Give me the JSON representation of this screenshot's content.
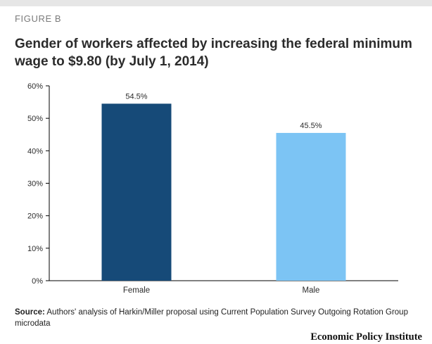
{
  "figure_label": "FIGURE B",
  "title": "Gender of workers affected by increasing the federal minimum wage to $9.80 (by July 1, 2014)",
  "source_label": "Source:",
  "source_text": "Authors' analysis of Harkin/Miller proposal using Current Population Survey Outgoing Rotation Group microdata",
  "logo_text": "Economic Policy Institute",
  "colors": {
    "female": "#164a78",
    "male": "#7cc4f4",
    "axis": "#000000",
    "text": "#2b2b2b"
  },
  "chart_data": {
    "type": "bar",
    "categories": [
      "Female",
      "Male"
    ],
    "values": [
      54.5,
      45.5
    ],
    "data_labels": [
      "54.5%",
      "45.5%"
    ],
    "yticks": [
      "0%",
      "10%",
      "20%",
      "30%",
      "40%",
      "50%",
      "60%"
    ],
    "ylim": [
      0,
      60
    ],
    "grid": false,
    "title": "",
    "xlabel": "",
    "ylabel": ""
  }
}
